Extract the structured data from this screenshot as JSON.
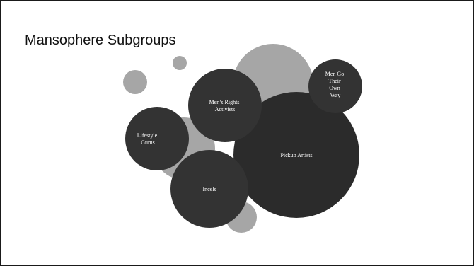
{
  "slide": {
    "title": "Mansophere Subgroups"
  },
  "colors": {
    "background": "#ffffff",
    "border": "#1a1a1a",
    "dark_bubble": "#333333",
    "darkest_bubble": "#2b2b2b",
    "light_bubble": "#a6a6a6",
    "label_text": "#ffffff"
  },
  "diagram": {
    "subgroups": [
      {
        "id": "pickup-artists",
        "lines": [
          "Pickup Artists"
        ]
      },
      {
        "id": "mens-rights-activists",
        "lines": [
          "Men’s Rights",
          "Activists"
        ]
      },
      {
        "id": "men-go-their-own-way",
        "lines": [
          "Men Go",
          "Their",
          "Own",
          "Way"
        ]
      },
      {
        "id": "lifestyle-gurus",
        "lines": [
          "Lifestyle",
          "Gurus"
        ]
      },
      {
        "id": "incels",
        "lines": [
          "Incels"
        ]
      }
    ]
  }
}
